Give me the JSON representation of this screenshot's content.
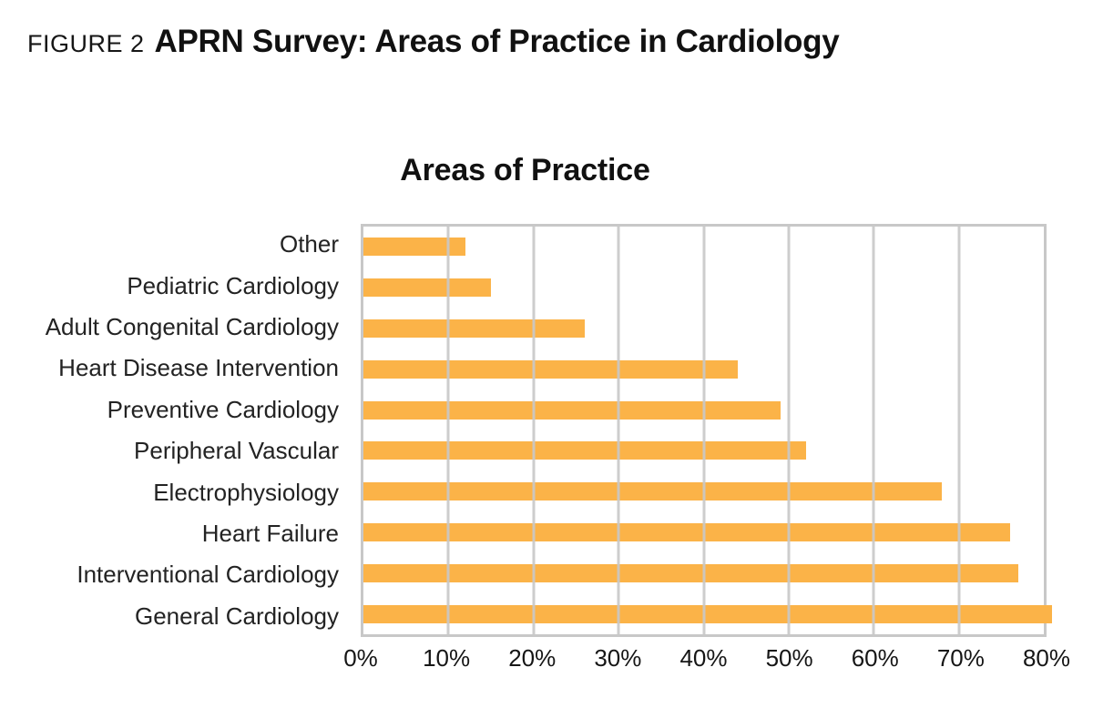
{
  "figure_caption": {
    "prefix": "FIGURE 2",
    "title": "APRN Survey: Areas of Practice in Cardiology"
  },
  "chart_data": {
    "type": "bar",
    "orientation": "horizontal",
    "title": "Areas of Practice",
    "categories": [
      "Other",
      "Pediatric Cardiology",
      "Adult Congenital Cardiology",
      "Heart Disease Intervention",
      "Preventive Cardiology",
      "Peripheral Vascular",
      "Electrophysiology",
      "Heart Failure",
      "Interventional Cardiology",
      "General Cardiology"
    ],
    "values": [
      12,
      15,
      26,
      44,
      49,
      52,
      68,
      76,
      77,
      81
    ],
    "unit": "%",
    "x_ticks": [
      "0%",
      "10%",
      "20%",
      "30%",
      "40%",
      "50%",
      "60%",
      "70%",
      "80%"
    ],
    "xlim": [
      0,
      80
    ],
    "xlabel": "",
    "ylabel": "",
    "grid": true,
    "legend": false,
    "bar_color": "#fbb348",
    "grid_color": "#c8c8c8",
    "text_color": "#1e1e1e"
  }
}
